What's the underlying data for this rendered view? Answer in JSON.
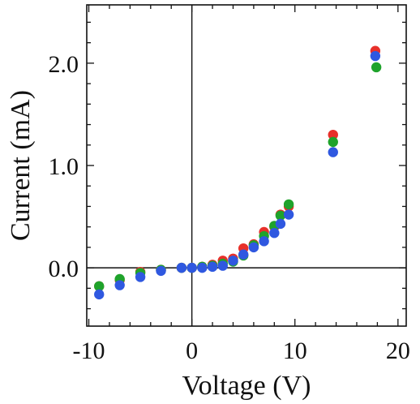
{
  "chart_data": {
    "type": "scatter",
    "xlabel": "Voltage (V)",
    "ylabel": "Current (mA)",
    "xlim": [
      -10.2,
      20.8
    ],
    "ylim": [
      -0.57,
      2.57
    ],
    "xticks": [
      -10,
      0,
      10,
      20
    ],
    "xtick_labels": [
      "-10",
      "0",
      "10",
      "20"
    ],
    "yticks": [
      0.0,
      1.0,
      2.0
    ],
    "ytick_labels": [
      "0.0",
      "1.0",
      "2.0"
    ],
    "zero_lines": true,
    "grid": false,
    "series": [
      {
        "color": "#e8302a",
        "points": [
          [
            -9.0,
            -0.18
          ],
          [
            -7.0,
            -0.12
          ],
          [
            -5.0,
            -0.04
          ],
          [
            -3.0,
            -0.02
          ],
          [
            -1.0,
            0.0
          ],
          [
            0.0,
            0.0
          ],
          [
            1.0,
            0.01
          ],
          [
            2.0,
            0.03
          ],
          [
            3.0,
            0.07
          ],
          [
            4.0,
            0.09
          ],
          [
            5.0,
            0.19
          ],
          [
            6.0,
            0.23
          ],
          [
            7.0,
            0.35
          ],
          [
            8.0,
            0.4
          ],
          [
            8.6,
            0.52
          ],
          [
            9.4,
            0.6
          ],
          [
            13.7,
            1.3
          ],
          [
            17.8,
            2.12
          ]
        ]
      },
      {
        "color": "#1fa32b",
        "points": [
          [
            -9.0,
            -0.18
          ],
          [
            -7.0,
            -0.11
          ],
          [
            -5.0,
            -0.05
          ],
          [
            -3.0,
            -0.02
          ],
          [
            -1.0,
            0.0
          ],
          [
            0.0,
            0.0
          ],
          [
            1.0,
            0.01
          ],
          [
            2.0,
            0.02
          ],
          [
            3.0,
            0.04
          ],
          [
            4.0,
            0.06
          ],
          [
            5.0,
            0.12
          ],
          [
            6.0,
            0.22
          ],
          [
            7.0,
            0.31
          ],
          [
            8.0,
            0.41
          ],
          [
            8.6,
            0.51
          ],
          [
            9.4,
            0.62
          ],
          [
            13.7,
            1.23
          ],
          [
            17.9,
            1.96
          ]
        ]
      },
      {
        "color": "#2f58e0",
        "points": [
          [
            -9.0,
            -0.26
          ],
          [
            -7.0,
            -0.17
          ],
          [
            -5.0,
            -0.09
          ],
          [
            -3.0,
            -0.03
          ],
          [
            -1.0,
            0.0
          ],
          [
            0.0,
            0.0
          ],
          [
            1.0,
            0.0
          ],
          [
            2.0,
            0.01
          ],
          [
            3.0,
            0.02
          ],
          [
            4.0,
            0.07
          ],
          [
            5.0,
            0.13
          ],
          [
            6.0,
            0.2
          ],
          [
            7.0,
            0.26
          ],
          [
            8.0,
            0.34
          ],
          [
            8.6,
            0.43
          ],
          [
            9.4,
            0.52
          ],
          [
            13.7,
            1.13
          ],
          [
            17.8,
            2.07
          ]
        ]
      }
    ]
  }
}
